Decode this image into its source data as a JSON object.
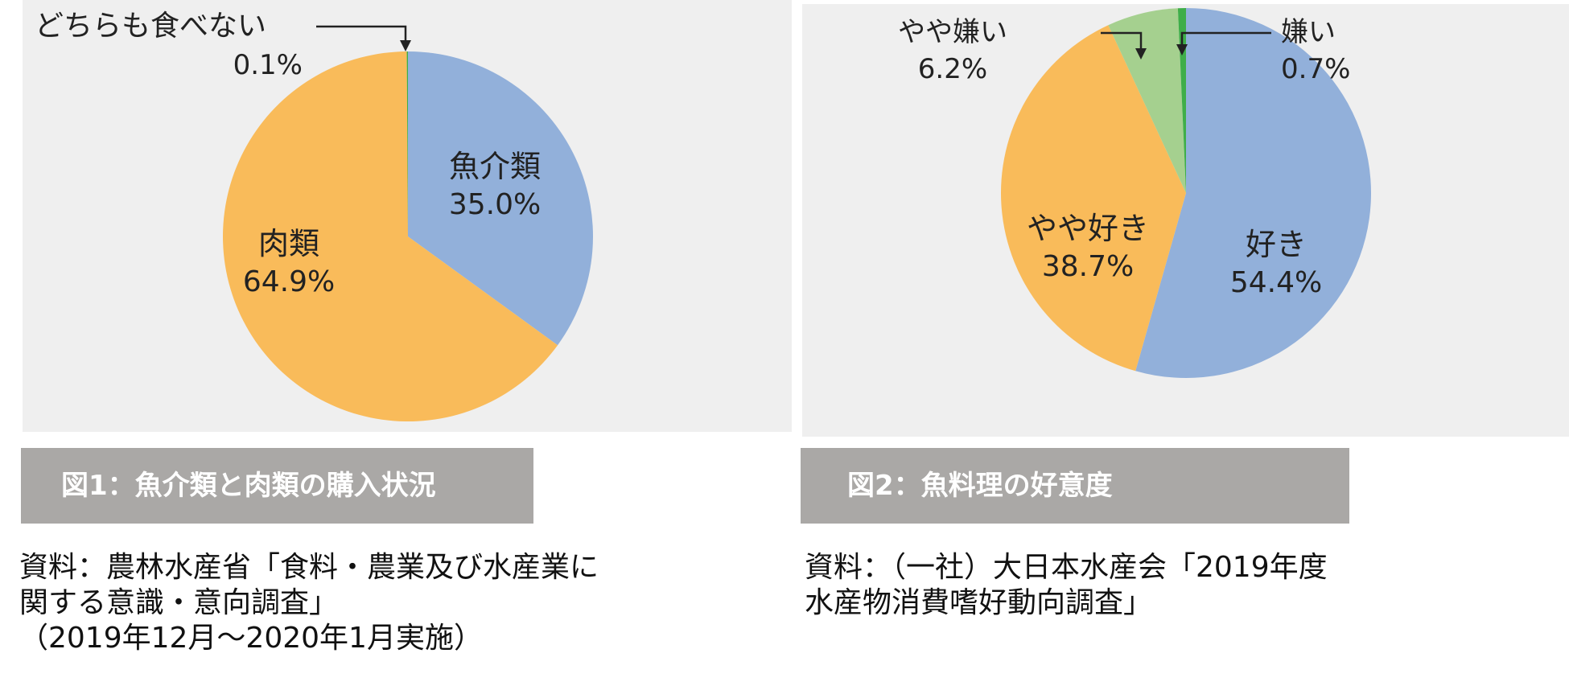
{
  "chart_data": [
    {
      "type": "pie",
      "title": "",
      "slices": [
        {
          "label": "魚介類",
          "value": 35.0,
          "value_label": "35.0%",
          "color": "#92b0da"
        },
        {
          "label": "肉類",
          "value": 64.9,
          "value_label": "64.9%",
          "color": "#f9bb5a"
        },
        {
          "label": "どちらも食べない",
          "value": 0.1,
          "value_label": "0.1%",
          "color": "#3fae49"
        }
      ],
      "start": "top",
      "direction": "clockwise"
    },
    {
      "type": "pie",
      "title": "",
      "slices": [
        {
          "label": "好き",
          "value": 54.4,
          "value_label": "54.4%",
          "color": "#92b0da"
        },
        {
          "label": "やや好き",
          "value": 38.7,
          "value_label": "38.7%",
          "color": "#f9bb5a"
        },
        {
          "label": "やや嫌い",
          "value": 6.2,
          "value_label": "6.2%",
          "color": "#a5d08f"
        },
        {
          "label": "嫌い",
          "value": 0.7,
          "value_label": "0.7%",
          "color": "#3fae49"
        }
      ],
      "start": "top",
      "direction": "clockwise"
    }
  ],
  "figure1": {
    "caption": "図1：魚介類と肉類の購入状況",
    "source_lines": [
      "資料：農林水産省「食料・農業及び水産業に",
      "関する意識・意向調査」",
      "（2019年12月～2020年1月実施）"
    ]
  },
  "figure2": {
    "caption": "図2：魚料理の好意度",
    "source_lines": [
      "資料：（一社）大日本水産会「2019年度",
      "水産物消費嗜好動向調査」"
    ]
  }
}
